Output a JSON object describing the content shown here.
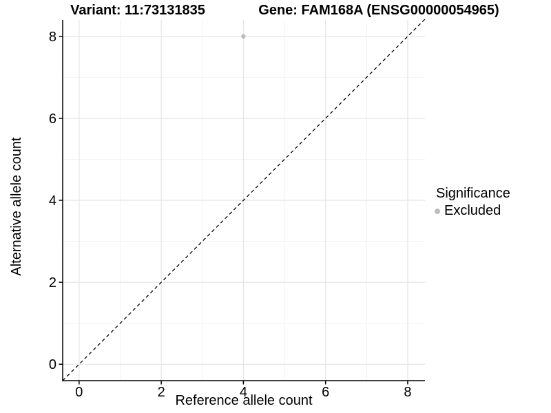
{
  "figure": {
    "background": "#ffffff"
  },
  "chart_data": {
    "type": "scatter",
    "title_left": "Variant: 11:73131835",
    "title_right": "Gene: FAM168A (ENSG00000054965)",
    "xlabel": "Reference allele count",
    "ylabel": "Alternative allele count",
    "xlim": [
      -0.4,
      8.42
    ],
    "ylim": [
      -0.4,
      8.4
    ],
    "x_major_ticks": [
      0,
      2,
      4,
      6,
      8
    ],
    "y_major_ticks": [
      0,
      2,
      4,
      6,
      8
    ],
    "x_minor_ticks": [
      1,
      3,
      5,
      7
    ],
    "y_minor_ticks": [
      1,
      3,
      5,
      7
    ],
    "grid": true,
    "series": [
      {
        "name": "Excluded",
        "marker": "circle",
        "color": "#bdbdbd",
        "points": [
          {
            "x": 4,
            "y": 8
          }
        ]
      }
    ],
    "reference_line": {
      "type": "identity",
      "style": "dashed",
      "color": "#000000",
      "from": [
        -0.4,
        -0.4
      ],
      "to": [
        8.42,
        8.42
      ]
    },
    "legend": {
      "title": "Significance",
      "position": "right",
      "items": [
        {
          "label": "Excluded",
          "color": "#bdbdbd",
          "marker": "circle"
        }
      ]
    },
    "colors": {
      "grid_major": "#e4e4e4",
      "grid_minor": "#f2f2f2",
      "axis_line": "#000000",
      "tick_mark": "#000000",
      "tick_text": "#000000",
      "point": "#bdbdbd"
    }
  }
}
